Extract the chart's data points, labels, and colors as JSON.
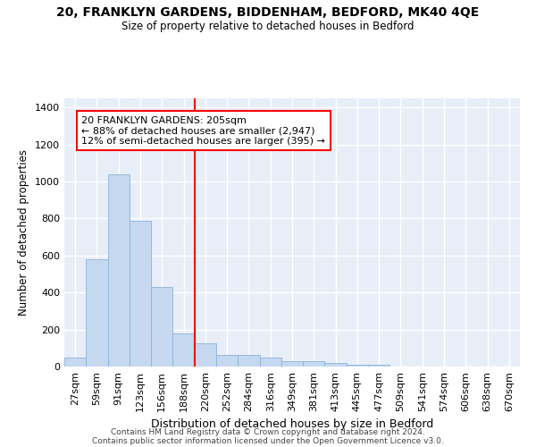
{
  "title1": "20, FRANKLYN GARDENS, BIDDENHAM, BEDFORD, MK40 4QE",
  "title2": "Size of property relative to detached houses in Bedford",
  "xlabel": "Distribution of detached houses by size in Bedford",
  "ylabel": "Number of detached properties",
  "bar_color": "#c5d8f0",
  "bar_edge_color": "#8ab4d8",
  "background_color": "#e8eef8",
  "grid_color": "#ffffff",
  "annotation_text": "20 FRANKLYN GARDENS: 205sqm\n← 88% of detached houses are smaller (2,947)\n12% of semi-detached houses are larger (395) →",
  "categories": [
    "27sqm",
    "59sqm",
    "91sqm",
    "123sqm",
    "156sqm",
    "188sqm",
    "220sqm",
    "252sqm",
    "284sqm",
    "316sqm",
    "349sqm",
    "381sqm",
    "413sqm",
    "445sqm",
    "477sqm",
    "509sqm",
    "541sqm",
    "574sqm",
    "606sqm",
    "638sqm",
    "670sqm"
  ],
  "values": [
    47,
    578,
    1040,
    788,
    430,
    178,
    128,
    65,
    65,
    47,
    28,
    27,
    18,
    10,
    10,
    0,
    0,
    0,
    0,
    0,
    0
  ],
  "red_line_index": 6,
  "ylim": [
    0,
    1450
  ],
  "yticks": [
    0,
    200,
    400,
    600,
    800,
    1000,
    1200,
    1400
  ],
  "footer1": "Contains HM Land Registry data © Crown copyright and database right 2024.",
  "footer2": "Contains public sector information licensed under the Open Government Licence v3.0."
}
